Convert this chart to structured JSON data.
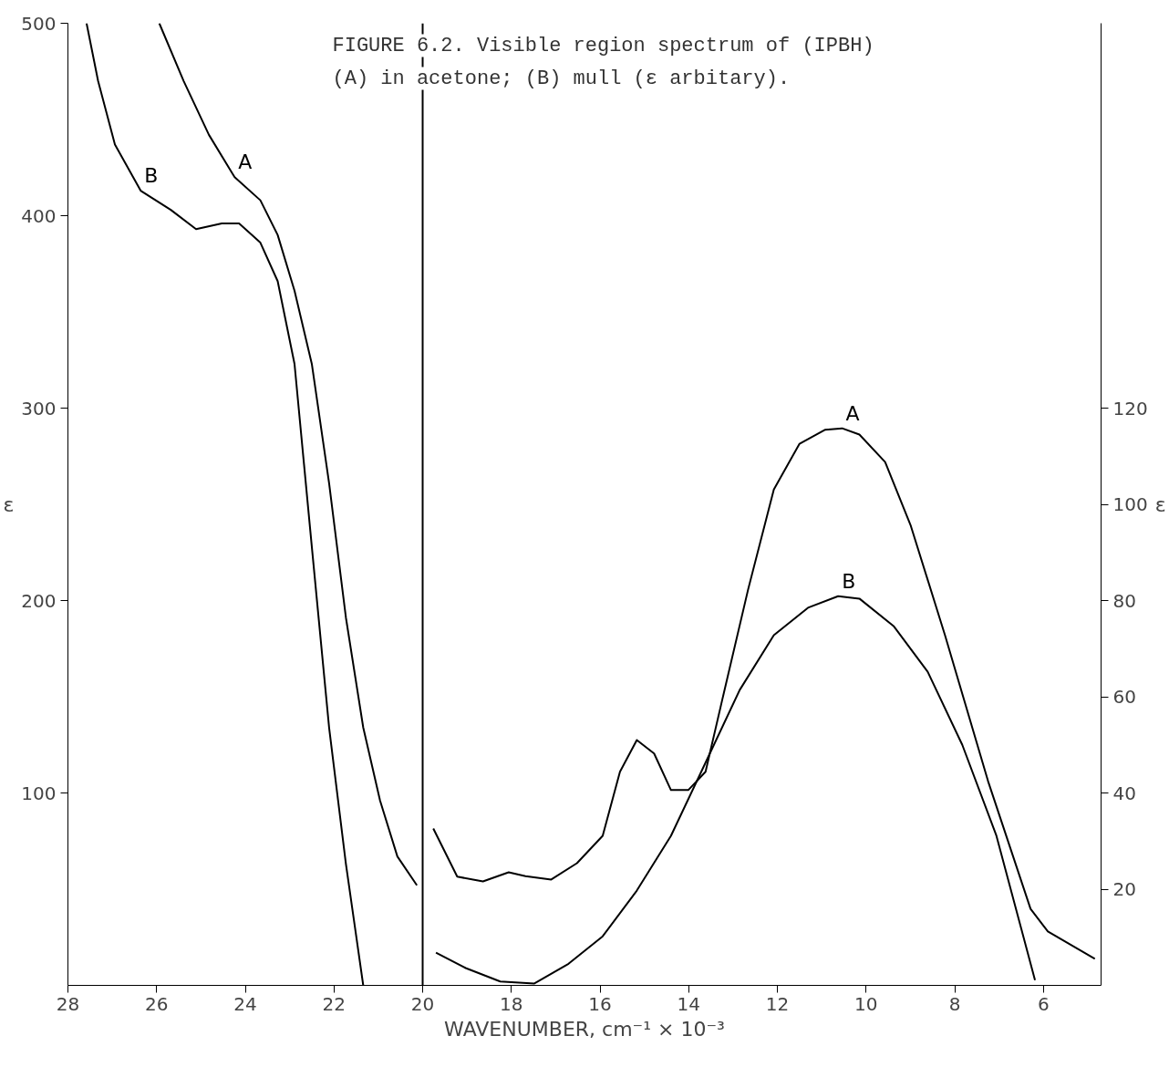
{
  "chart_data": {
    "type": "line",
    "title": "FIGURE 6.2.  Visible region spectrum of (IPBH)",
    "subtitle": "(A) in acetone; (B) mull (ε arbitary).",
    "xlabel": "WAVENUMBER, cm⁻¹ × 10⁻³",
    "ylabel": "ε",
    "y2label": "ε",
    "xlim": [
      28,
      4.7
    ],
    "xticks": [
      28,
      26,
      24,
      22,
      20,
      18,
      16,
      14,
      12,
      10,
      8,
      6
    ],
    "ylim": [
      0,
      500
    ],
    "yticks": [
      100,
      200,
      300,
      400,
      500
    ],
    "y2lim": [
      0,
      200
    ],
    "y2ticks": [
      20,
      40,
      60,
      80,
      100,
      120
    ],
    "grid": false,
    "marker": "none",
    "line_style": "solid",
    "ref_lines": [
      {
        "axis": "x",
        "value": 20,
        "color": "#000000"
      }
    ],
    "series": [
      {
        "name": "A",
        "color": "#000000",
        "x": [
          25.94,
          25.39,
          24.82,
          24.24,
          23.66,
          23.27,
          22.89,
          22.5,
          22.11,
          21.73,
          21.34,
          20.96,
          20.57,
          20.13
        ],
        "values": [
          500,
          470,
          442,
          420,
          408,
          390,
          361,
          323,
          261,
          191,
          134,
          96,
          67,
          52
        ]
      },
      {
        "name": "B",
        "color": "#000000",
        "x": [
          27.58,
          27.32,
          26.94,
          26.36,
          25.68,
          25.11,
          24.53,
          24.14,
          23.66,
          23.27,
          22.89,
          22.5,
          22.11,
          21.73,
          21.34
        ],
        "values": [
          500,
          470,
          437,
          413,
          403,
          393,
          396,
          396,
          386,
          366,
          323,
          228,
          134,
          63,
          0
        ]
      },
      {
        "name": "A",
        "color": "#000000",
        "axis": "y2",
        "x": [
          19.76,
          19.22,
          18.64,
          18.06,
          17.68,
          17.1,
          16.52,
          15.94,
          15.55,
          15.17,
          14.78,
          14.4,
          14.01,
          13.62,
          13.24,
          12.66,
          12.08,
          11.5,
          10.92,
          10.54,
          10.15,
          9.57,
          8.99,
          8.22,
          7.25,
          6.29,
          5.9,
          4.84
        ],
        "values": [
          32.6,
          22.6,
          21.6,
          23.5,
          22.7,
          22,
          25.4,
          31.1,
          44.4,
          51,
          48.2,
          40.6,
          40.6,
          44.4,
          59.5,
          82.3,
          103.1,
          112.6,
          115.5,
          115.8,
          114.5,
          108.8,
          95.5,
          72.8,
          42.5,
          15.9,
          11.2,
          5.5
        ]
      },
      {
        "name": "B",
        "color": "#000000",
        "axis": "y2",
        "x": [
          19.7,
          19.03,
          18.25,
          17.48,
          16.71,
          15.94,
          15.17,
          14.4,
          13.62,
          12.85,
          12.08,
          11.31,
          10.63,
          10.15,
          9.38,
          8.61,
          7.83,
          7.06,
          6.19
        ],
        "values": [
          6.8,
          3.6,
          0.8,
          0.4,
          4.5,
          10.2,
          19.7,
          31.1,
          46.3,
          61.4,
          72.8,
          78.5,
          80.9,
          80.4,
          74.7,
          65.2,
          50,
          31.1,
          1.1
        ]
      }
    ]
  }
}
